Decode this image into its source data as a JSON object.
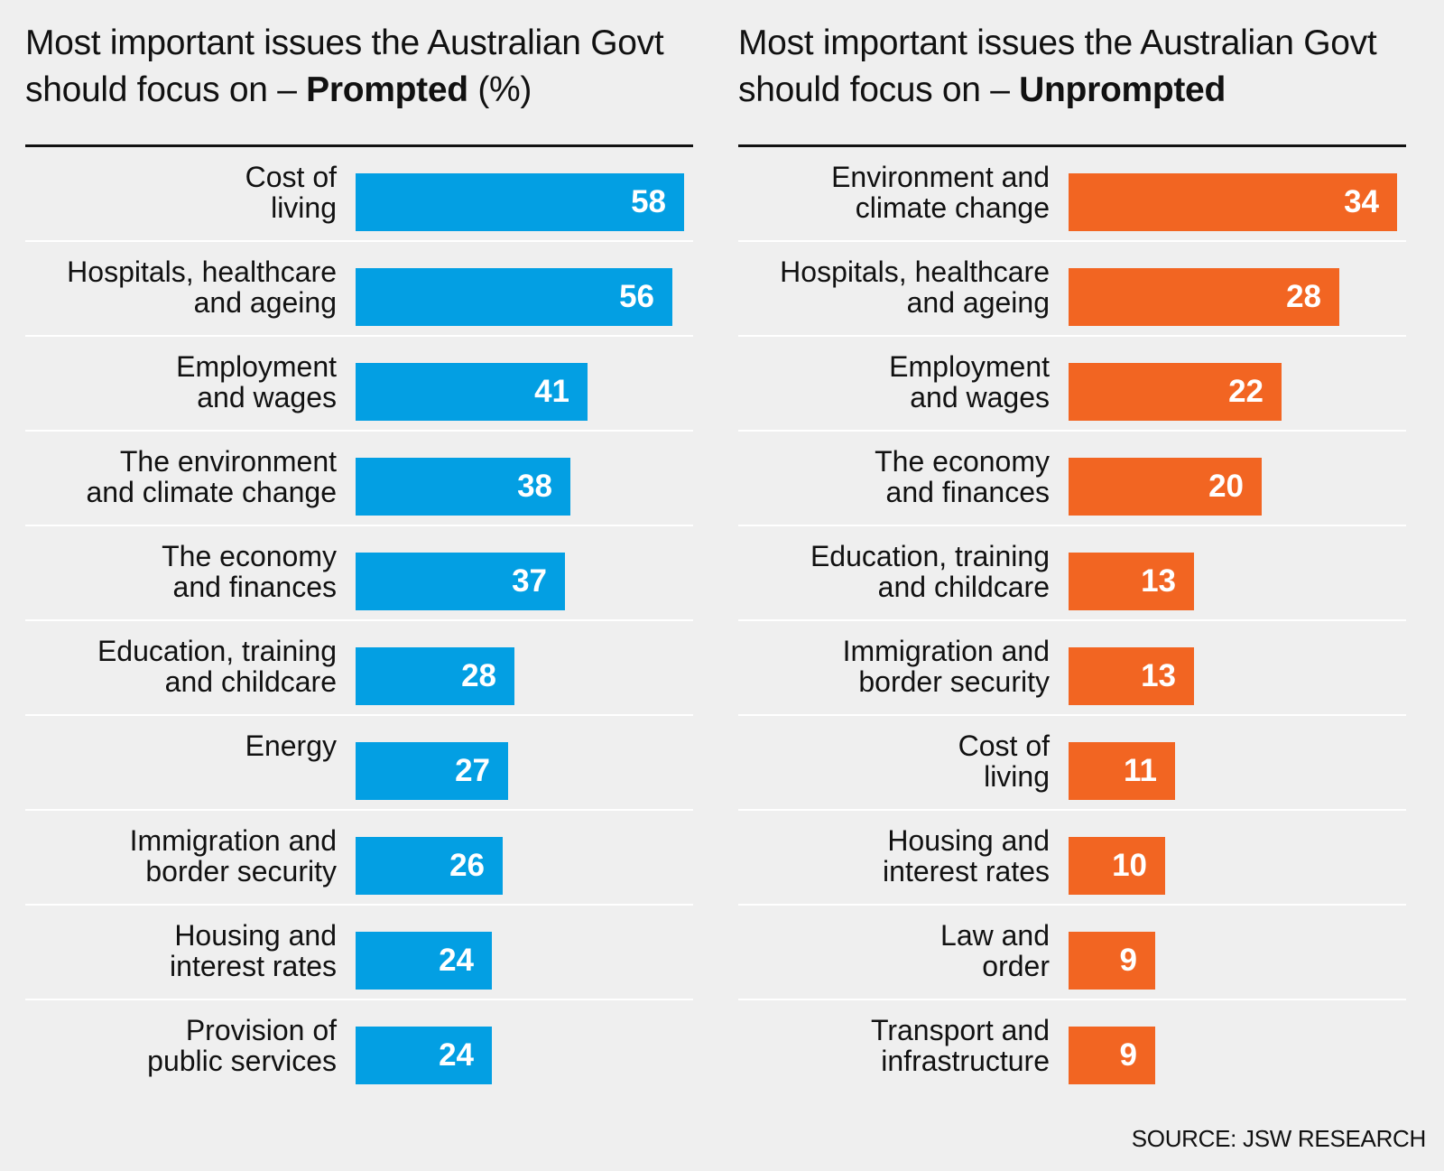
{
  "chart_data": [
    {
      "type": "bar",
      "orientation": "horizontal",
      "title_main": "Most important issues the Australian Govt should focus on – ",
      "title_emphasis": "Prompted",
      "title_suffix": " (%)",
      "color": "#039fe3",
      "xlim": [
        0,
        58
      ],
      "categories": [
        "Cost of\nliving",
        "Hospitals, healthcare\nand ageing",
        "Employment\nand wages",
        "The environment\nand climate change",
        "The economy\nand finances",
        "Education, training\nand childcare",
        "Energy",
        "Immigration and\nborder security",
        "Housing and\ninterest rates",
        "Provision of\npublic services"
      ],
      "values": [
        58,
        56,
        41,
        38,
        37,
        28,
        27,
        26,
        24,
        24
      ]
    },
    {
      "type": "bar",
      "orientation": "horizontal",
      "title_main": "Most important issues the Australian Govt should focus on – ",
      "title_emphasis": "Unprompted",
      "title_suffix": "",
      "color": "#f26522",
      "xlim": [
        0,
        34
      ],
      "categories": [
        "Environment and\nclimate change",
        "Hospitals, healthcare\nand ageing",
        "Employment\nand wages",
        "The economy\nand finances",
        "Education, training\nand childcare",
        "Immigration and\nborder security",
        "Cost of\nliving",
        "Housing and\ninterest rates",
        "Law and\norder",
        "Transport and\ninfrastructure"
      ],
      "values": [
        34,
        28,
        22,
        20,
        13,
        13,
        11,
        10,
        9,
        9
      ]
    }
  ],
  "source": "SOURCE: JSW RESEARCH"
}
